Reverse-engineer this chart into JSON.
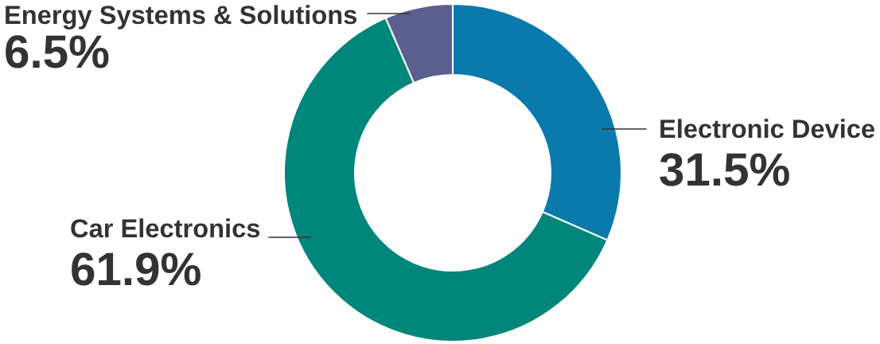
{
  "chart_data": {
    "type": "donut",
    "categories": [
      "Electronic Device",
      "Car Electronics",
      "Energy Systems & Solutions"
    ],
    "values": [
      31.5,
      61.9,
      6.5
    ],
    "value_labels": [
      "31.5%",
      "61.9%",
      "6.5%"
    ],
    "colors": [
      "#0a7aad",
      "#00867a",
      "#5a5f8f"
    ],
    "legend": false
  }
}
